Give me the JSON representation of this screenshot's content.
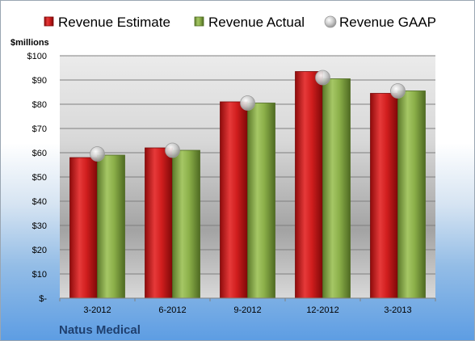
{
  "chart_data": {
    "type": "bar",
    "title": "Natus Medical",
    "ylabel": "$millions",
    "xlabel": "",
    "categories": [
      "3-2012",
      "6-2012",
      "9-2012",
      "12-2012",
      "3-2013"
    ],
    "series": [
      {
        "name": "Revenue Estimate",
        "kind": "bar",
        "values": [
          58,
          62,
          81,
          93.5,
          84.5
        ],
        "color": "#d81e1e"
      },
      {
        "name": "Revenue Actual",
        "kind": "bar",
        "values": [
          59,
          61,
          80.5,
          90.5,
          85.5
        ],
        "color": "#8cb04a"
      },
      {
        "name": "Revenue GAAP",
        "kind": "marker",
        "values": [
          59.5,
          61,
          80.5,
          91,
          85.5
        ],
        "color": "#c0c0c0"
      }
    ],
    "ylim": [
      0,
      100
    ],
    "yticks": [
      0,
      10,
      20,
      30,
      40,
      50,
      60,
      70,
      80,
      90,
      100
    ],
    "ytick_labels": [
      "$-",
      "$10",
      "$20",
      "$30",
      "$40",
      "$50",
      "$60",
      "$70",
      "$80",
      "$90",
      "$100"
    ],
    "grid": true,
    "legend_position": "top"
  }
}
